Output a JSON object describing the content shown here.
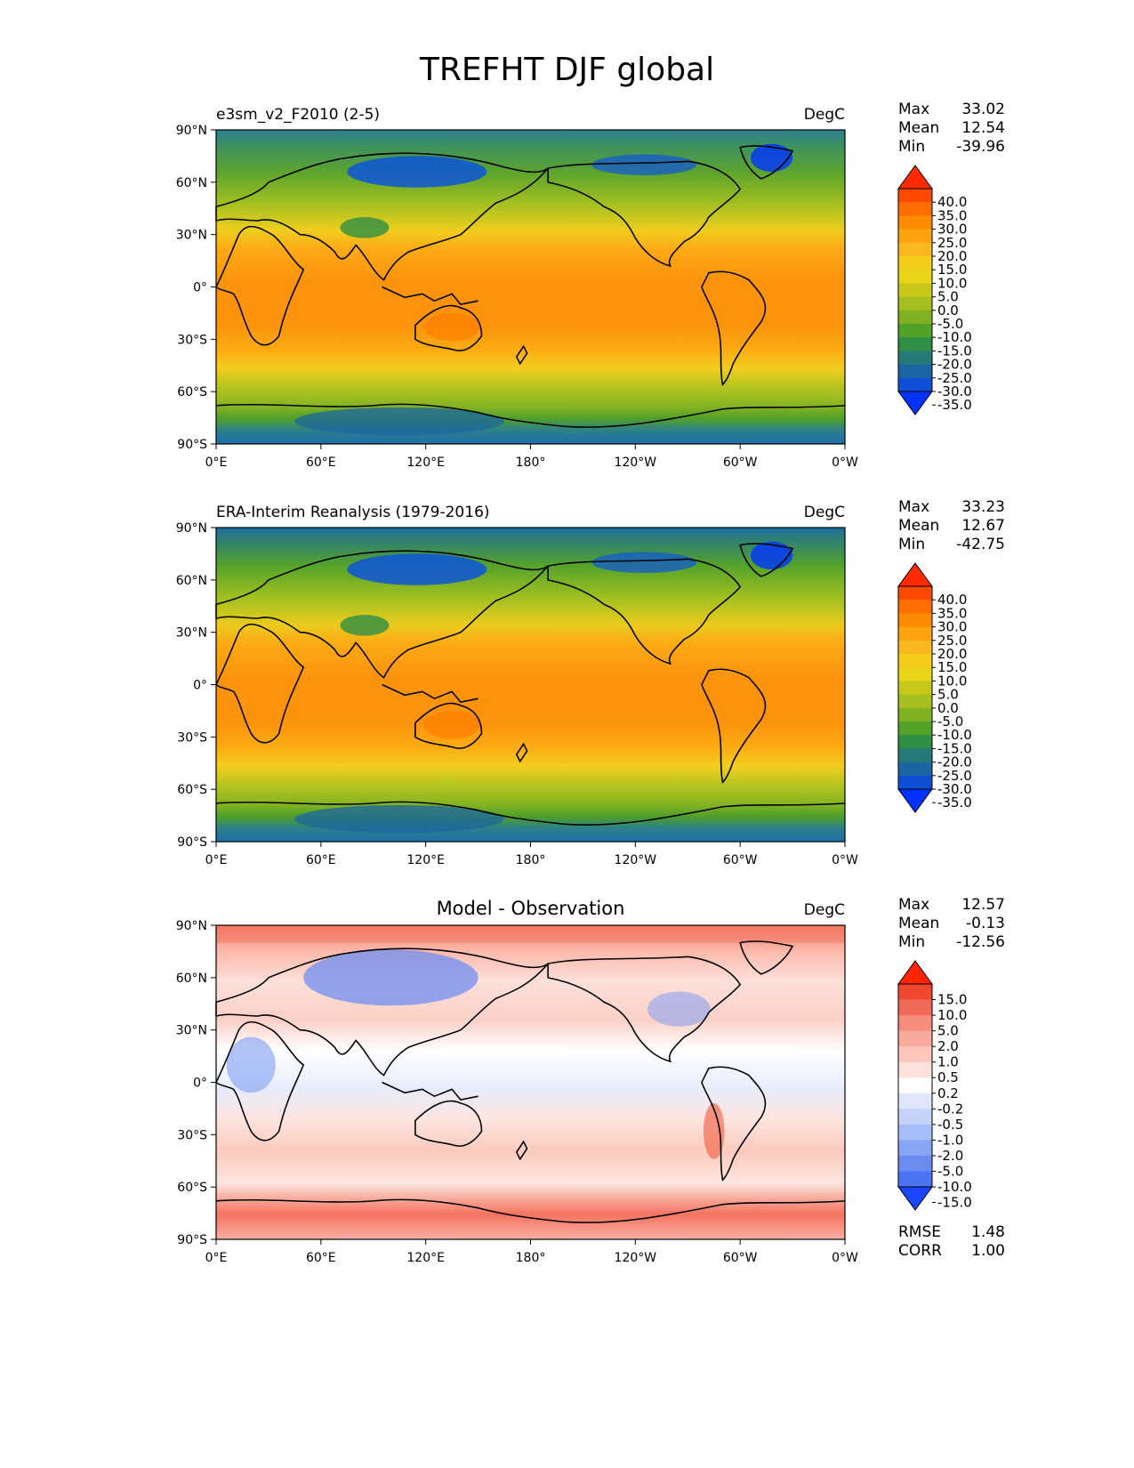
{
  "figure": {
    "title": "TREFHT DJF global"
  },
  "axis_ticks": {
    "lat": [
      "90°N",
      "60°N",
      "30°N",
      "0°",
      "30°S",
      "60°S",
      "90°S"
    ],
    "lon": [
      "0°E",
      "60°E",
      "120°E",
      "180°",
      "120°W",
      "60°W",
      "0°W"
    ]
  },
  "panels": [
    {
      "id": "model",
      "title_left": "e3sm_v2_F2010 (2-5)",
      "title_center": "",
      "units": "DegC",
      "stats": [
        {
          "label": "Max",
          "value": "33.02"
        },
        {
          "label": "Mean",
          "value": "12.54"
        },
        {
          "label": "Min",
          "value": "-39.96"
        }
      ],
      "colorbar_labels": [
        "40.0",
        "35.0",
        "30.0",
        "25.0",
        "20.0",
        "15.0",
        "10.0",
        "5.0",
        "0.0",
        "-5.0",
        "-10.0",
        "-15.0",
        "-20.0",
        "-25.0",
        "-30.0",
        "-35.0"
      ],
      "colorbar_colors": [
        "#ff2a00",
        "#ff4a00",
        "#ff6e00",
        "#ff8c00",
        "#fca30f",
        "#f9b820",
        "#f4cc1c",
        "#e8d419",
        "#c8c81b",
        "#a6be1e",
        "#7fb122",
        "#51a227",
        "#2f8f45",
        "#267a77",
        "#1b66a0",
        "#0e4fd6",
        "#0033ff"
      ],
      "extra_stats": []
    },
    {
      "id": "obs",
      "title_left": "ERA-Interim Reanalysis (1979-2016)",
      "title_center": "",
      "units": "DegC",
      "stats": [
        {
          "label": "Max",
          "value": "33.23"
        },
        {
          "label": "Mean",
          "value": "12.67"
        },
        {
          "label": "Min",
          "value": "-42.75"
        }
      ],
      "colorbar_labels": [
        "40.0",
        "35.0",
        "30.0",
        "25.0",
        "20.0",
        "15.0",
        "10.0",
        "5.0",
        "0.0",
        "-5.0",
        "-10.0",
        "-15.0",
        "-20.0",
        "-25.0",
        "-30.0",
        "-35.0"
      ],
      "colorbar_colors": [
        "#ff2a00",
        "#ff4a00",
        "#ff6e00",
        "#ff8c00",
        "#fca30f",
        "#f9b820",
        "#f4cc1c",
        "#e8d419",
        "#c8c81b",
        "#a6be1e",
        "#7fb122",
        "#51a227",
        "#2f8f45",
        "#267a77",
        "#1b66a0",
        "#0e4fd6",
        "#0033ff"
      ],
      "extra_stats": []
    },
    {
      "id": "diff",
      "title_left": "",
      "title_center": "Model - Observation",
      "units": "DegC",
      "stats": [
        {
          "label": "Max",
          "value": "12.57"
        },
        {
          "label": "Mean",
          "value": "-0.13"
        },
        {
          "label": "Min",
          "value": "-12.56"
        }
      ],
      "colorbar_labels": [
        "15.0",
        "10.0",
        "5.0",
        "2.0",
        "1.0",
        "0.5",
        "0.2",
        "-0.2",
        "-0.5",
        "-1.0",
        "-2.0",
        "-5.0",
        "-10.0",
        "-15.0"
      ],
      "colorbar_colors": [
        "#ff2600",
        "#f04830",
        "#f06a58",
        "#f58c7c",
        "#f8aa9c",
        "#fbc6bc",
        "#fde2dc",
        "#ffffff",
        "#e0e6fb",
        "#c5d2fa",
        "#a7bdf7",
        "#88a5f4",
        "#6a8cf1",
        "#4d73f0",
        "#1a46ff"
      ],
      "extra_stats": [
        {
          "label": "RMSE",
          "value": "1.48"
        },
        {
          "label": "CORR",
          "value": "1.00"
        }
      ]
    }
  ]
}
